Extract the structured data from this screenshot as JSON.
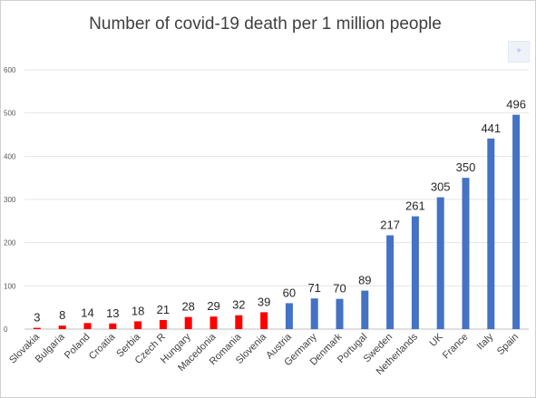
{
  "chart_data": {
    "type": "bar",
    "title": "Number of covid-19 death per 1 million people",
    "categories": [
      "Slovakia",
      "Bulgaria",
      "Poland",
      "Croatia",
      "Serbia",
      "Czech R",
      "Hungary",
      "Macedonia",
      "Romania",
      "Slovenia",
      "Austria",
      "Germany",
      "Denmark",
      "Portugal",
      "Sweden",
      "Netherlands",
      "UK",
      "France",
      "Italy",
      "Spain"
    ],
    "values": [
      3,
      8,
      14,
      13,
      18,
      21,
      28,
      29,
      32,
      39,
      60,
      71,
      70,
      89,
      217,
      261,
      305,
      350,
      441,
      496
    ],
    "bar_colors": [
      "#ff0000",
      "#ff0000",
      "#ff0000",
      "#ff0000",
      "#ff0000",
      "#ff0000",
      "#ff0000",
      "#ff0000",
      "#ff0000",
      "#ff0000",
      "#4472c4",
      "#4472c4",
      "#4472c4",
      "#4472c4",
      "#4472c4",
      "#4472c4",
      "#4472c4",
      "#4472c4",
      "#4472c4",
      "#4472c4"
    ],
    "ylim": [
      0,
      600
    ],
    "yticks": [
      0,
      100,
      200,
      300,
      400,
      500,
      600
    ],
    "grid": true,
    "xlabel": "",
    "ylabel": ""
  }
}
